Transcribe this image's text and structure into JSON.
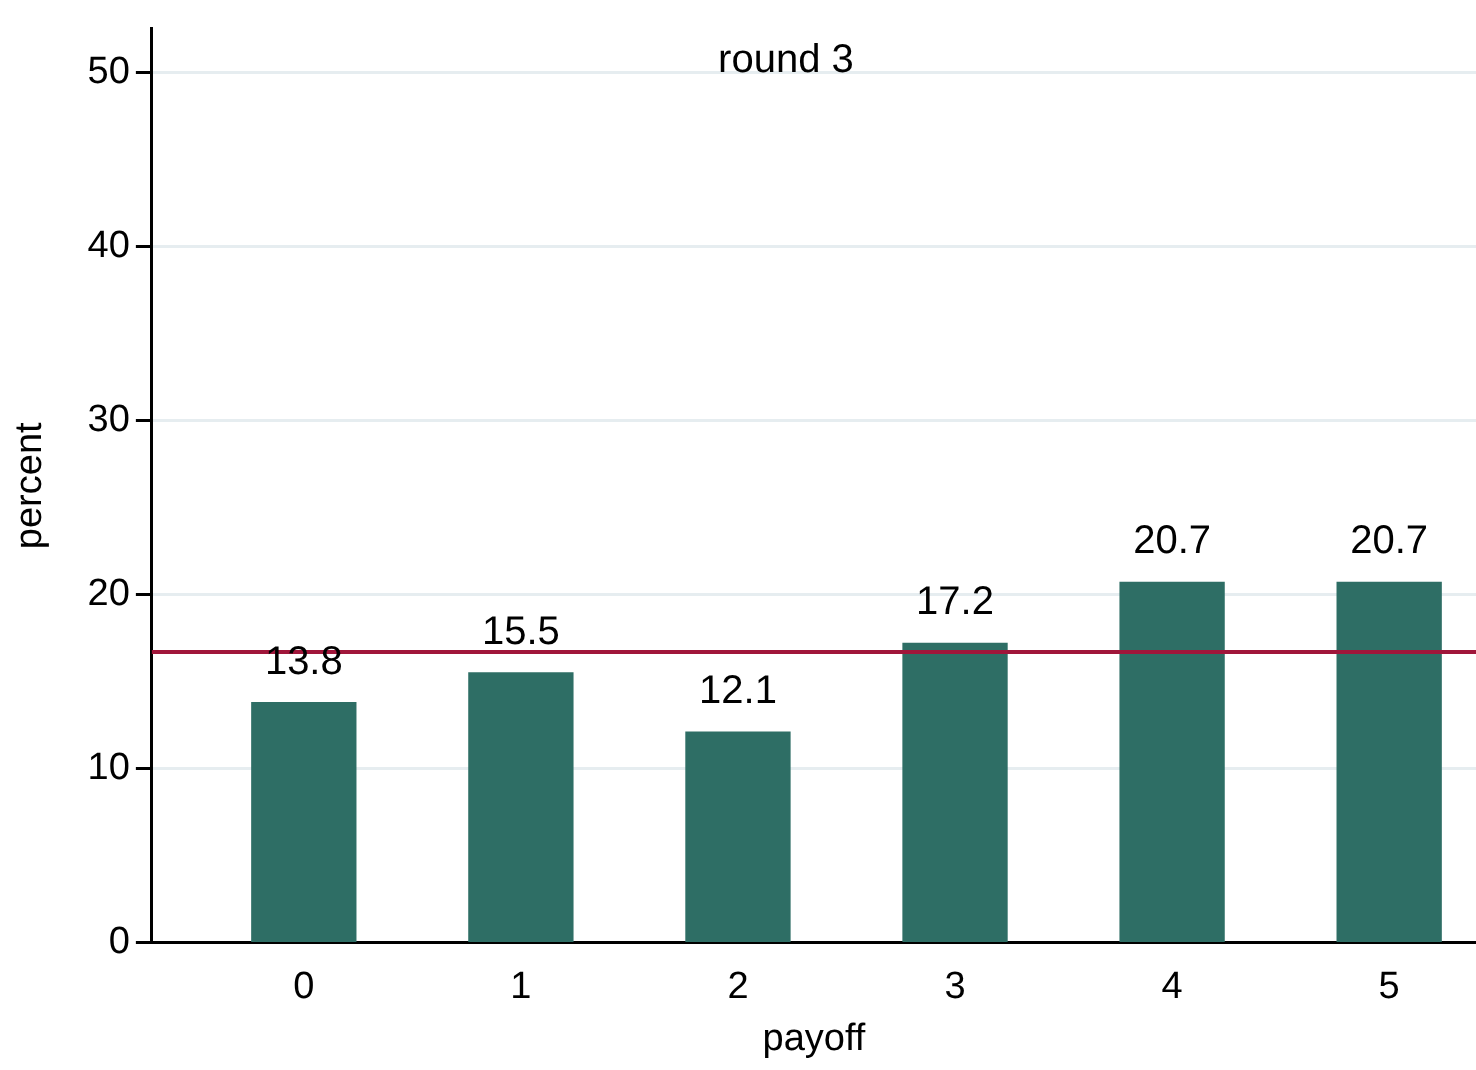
{
  "chart_data": {
    "type": "bar",
    "title": "round 3",
    "xlabel": "payoff",
    "ylabel": "percent",
    "x": [
      0,
      1,
      2,
      3,
      4,
      5
    ],
    "values": [
      13.8,
      15.5,
      12.1,
      17.2,
      20.7,
      20.7
    ],
    "color": "#2e6e65",
    "xlim": [
      -0.7,
      5.4
    ],
    "xticks": [
      0,
      1,
      2,
      3,
      4,
      5
    ],
    "ylim": [
      0,
      52.5
    ],
    "yticks": [
      0,
      10,
      20,
      30,
      40,
      50
    ],
    "grid": "y",
    "data_labels": true,
    "ref_lines": [
      {
        "axis": "y",
        "value": 16.7,
        "color": "#a0163a"
      }
    ]
  }
}
